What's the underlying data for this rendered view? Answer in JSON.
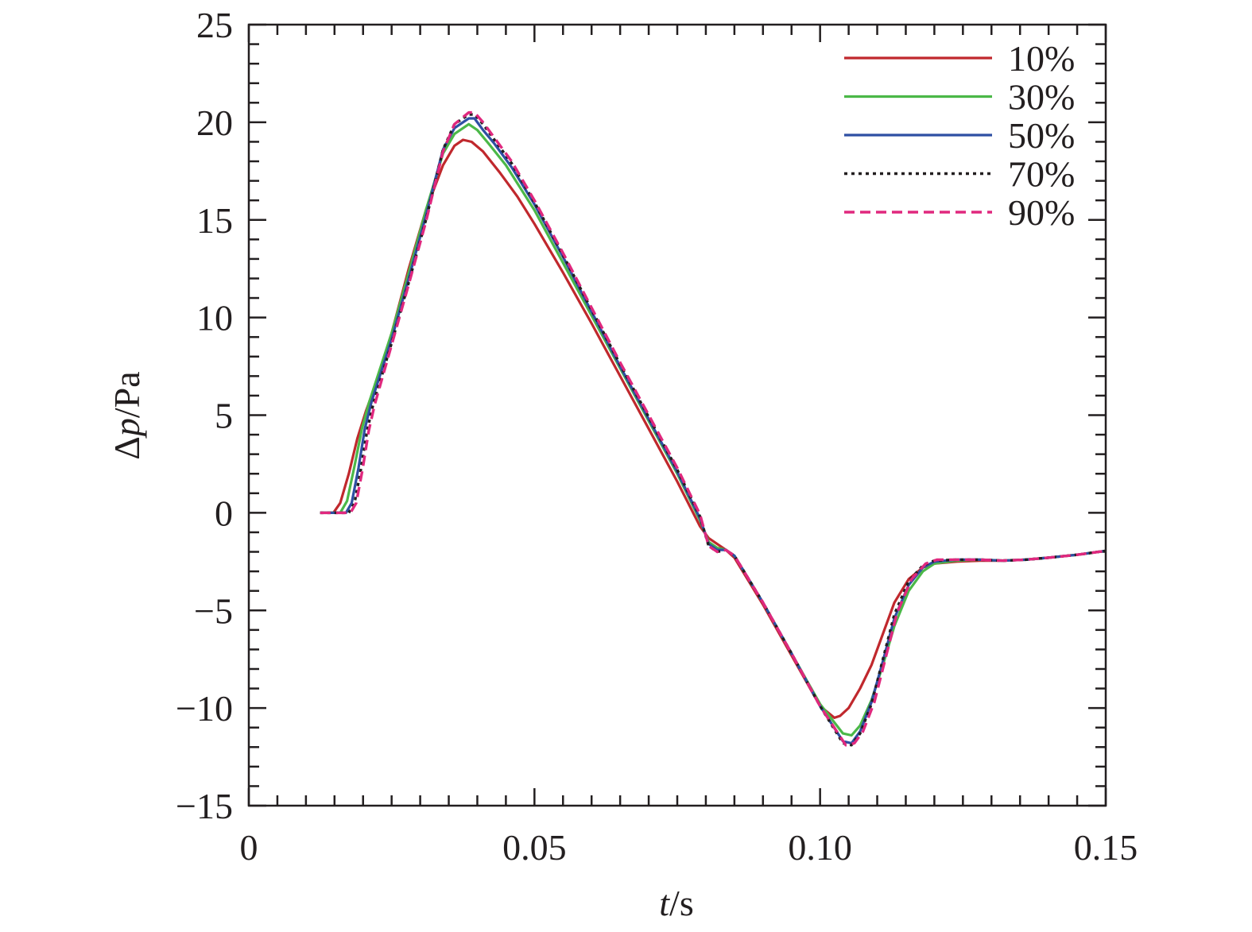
{
  "chart_data": {
    "type": "line",
    "title": "",
    "xlabel": {
      "var": "t",
      "unit": "/s"
    },
    "ylabel": {
      "var": "p",
      "prefix": "Δ",
      "unit": "/Pa"
    },
    "xlim": [
      0,
      0.15
    ],
    "ylim": [
      -15,
      25
    ],
    "xticks": [
      0,
      0.05,
      0.1,
      0.15
    ],
    "xtick_labels": [
      "0",
      "0.05",
      "0.10",
      "0.15"
    ],
    "yticks": [
      -15,
      -10,
      -5,
      0,
      5,
      10,
      15,
      20,
      25
    ],
    "ytick_labels": [
      "−15",
      "−10",
      "−5",
      "0",
      "5",
      "10",
      "15",
      "20",
      "25"
    ],
    "grid": false,
    "legend_position": "top-right",
    "series": [
      {
        "name": "10%",
        "color": "#c0282d",
        "style": "solid",
        "x": [
          0.0125,
          0.0148,
          0.016,
          0.0175,
          0.019,
          0.0205,
          0.022,
          0.025,
          0.028,
          0.031,
          0.034,
          0.036,
          0.0375,
          0.039,
          0.041,
          0.044,
          0.047,
          0.05,
          0.055,
          0.06,
          0.065,
          0.07,
          0.075,
          0.079,
          0.0805,
          0.082,
          0.0835,
          0.085,
          0.09,
          0.095,
          0.1,
          0.1025,
          0.1035,
          0.105,
          0.107,
          0.109,
          0.111,
          0.113,
          0.1155,
          0.118,
          0.12,
          0.124,
          0.128,
          0.132,
          0.136,
          0.14,
          0.145,
          0.15
        ],
        "y": [
          0,
          0,
          0.5,
          2.0,
          3.8,
          5.2,
          6.4,
          9.2,
          12.5,
          15.5,
          17.8,
          18.8,
          19.1,
          19.0,
          18.5,
          17.4,
          16.2,
          14.8,
          12.3,
          9.7,
          7.0,
          4.3,
          1.6,
          -0.7,
          -1.3,
          -1.6,
          -1.9,
          -2.3,
          -4.7,
          -7.3,
          -9.9,
          -10.5,
          -10.4,
          -10.0,
          -9.0,
          -7.8,
          -6.2,
          -4.6,
          -3.4,
          -2.8,
          -2.6,
          -2.5,
          -2.45,
          -2.45,
          -2.4,
          -2.3,
          -2.15,
          -1.95
        ]
      },
      {
        "name": "30%",
        "color": "#4bb848",
        "style": "solid",
        "x": [
          0.0125,
          0.016,
          0.0172,
          0.0185,
          0.0198,
          0.021,
          0.025,
          0.028,
          0.031,
          0.034,
          0.036,
          0.0385,
          0.04,
          0.042,
          0.045,
          0.05,
          0.055,
          0.06,
          0.065,
          0.07,
          0.075,
          0.079,
          0.0805,
          0.082,
          0.0835,
          0.085,
          0.09,
          0.095,
          0.1,
          0.104,
          0.1055,
          0.107,
          0.109,
          0.111,
          0.113,
          0.1155,
          0.118,
          0.12,
          0.124,
          0.128,
          0.132,
          0.136,
          0.14,
          0.145,
          0.15
        ],
        "y": [
          0,
          0,
          0.6,
          2.4,
          4.3,
          5.6,
          9.2,
          12.3,
          15.5,
          18.4,
          19.4,
          19.9,
          19.6,
          18.9,
          17.8,
          15.5,
          12.8,
          10.1,
          7.4,
          4.7,
          2.0,
          -0.4,
          -1.5,
          -1.8,
          -1.9,
          -2.2,
          -4.6,
          -7.2,
          -9.8,
          -11.3,
          -11.4,
          -10.9,
          -9.6,
          -7.8,
          -5.8,
          -4.0,
          -3.0,
          -2.6,
          -2.45,
          -2.4,
          -2.45,
          -2.4,
          -2.3,
          -2.15,
          -1.95
        ]
      },
      {
        "name": "50%",
        "color": "#2e4fa3",
        "style": "solid",
        "x": [
          0.0125,
          0.017,
          0.018,
          0.0192,
          0.0203,
          0.0215,
          0.025,
          0.028,
          0.031,
          0.034,
          0.036,
          0.0385,
          0.0395,
          0.041,
          0.043,
          0.046,
          0.05,
          0.055,
          0.06,
          0.065,
          0.07,
          0.075,
          0.079,
          0.0805,
          0.082,
          0.0835,
          0.085,
          0.09,
          0.095,
          0.1,
          0.104,
          0.1055,
          0.107,
          0.109,
          0.111,
          0.113,
          0.1155,
          0.118,
          0.12,
          0.124,
          0.128,
          0.132,
          0.136,
          0.14,
          0.145,
          0.15
        ],
        "y": [
          0,
          0,
          0.5,
          2.3,
          4.3,
          5.7,
          8.9,
          12.0,
          15.2,
          18.6,
          19.7,
          20.2,
          20.2,
          19.6,
          18.9,
          17.7,
          15.8,
          13.1,
          10.3,
          7.5,
          4.8,
          2.1,
          -0.3,
          -1.6,
          -1.9,
          -1.9,
          -2.2,
          -4.6,
          -7.2,
          -9.9,
          -11.7,
          -11.8,
          -11.2,
          -9.7,
          -7.6,
          -5.4,
          -3.7,
          -2.8,
          -2.5,
          -2.4,
          -2.4,
          -2.45,
          -2.4,
          -2.3,
          -2.15,
          -1.95
        ]
      },
      {
        "name": "70%",
        "color": "#231f20",
        "style": "dotted",
        "x": [
          0.0125,
          0.0175,
          0.0185,
          0.0196,
          0.0207,
          0.0218,
          0.025,
          0.028,
          0.031,
          0.034,
          0.036,
          0.0385,
          0.0395,
          0.041,
          0.043,
          0.046,
          0.05,
          0.055,
          0.06,
          0.065,
          0.07,
          0.075,
          0.079,
          0.0805,
          0.082,
          0.0835,
          0.085,
          0.09,
          0.095,
          0.1,
          0.104,
          0.1055,
          0.107,
          0.109,
          0.111,
          0.113,
          0.1155,
          0.118,
          0.12,
          0.124,
          0.128,
          0.132,
          0.136,
          0.14,
          0.145,
          0.15
        ],
        "y": [
          0,
          0,
          0.5,
          2.2,
          4.2,
          5.6,
          8.7,
          11.8,
          15.0,
          18.6,
          19.9,
          20.4,
          20.4,
          19.9,
          19.1,
          17.9,
          15.9,
          13.2,
          10.4,
          7.6,
          4.9,
          2.2,
          -0.2,
          -1.7,
          -2.0,
          -1.9,
          -2.2,
          -4.6,
          -7.2,
          -9.9,
          -11.8,
          -11.9,
          -11.3,
          -9.8,
          -7.5,
          -5.2,
          -3.5,
          -2.7,
          -2.45,
          -2.4,
          -2.4,
          -2.45,
          -2.4,
          -2.3,
          -2.15,
          -1.95
        ]
      },
      {
        "name": "90%",
        "color": "#e0287e",
        "style": "dashed",
        "x": [
          0.0125,
          0.0178,
          0.0188,
          0.0199,
          0.021,
          0.022,
          0.025,
          0.028,
          0.031,
          0.034,
          0.036,
          0.0385,
          0.0395,
          0.041,
          0.043,
          0.046,
          0.05,
          0.055,
          0.06,
          0.065,
          0.07,
          0.075,
          0.079,
          0.0805,
          0.082,
          0.0835,
          0.085,
          0.09,
          0.095,
          0.1,
          0.1045,
          0.106,
          0.1075,
          0.1095,
          0.1115,
          0.1135,
          0.116,
          0.1185,
          0.1205,
          0.124,
          0.128,
          0.132,
          0.136,
          0.14,
          0.145,
          0.15
        ],
        "y": [
          0,
          0,
          0.5,
          2.2,
          4.2,
          5.5,
          8.6,
          11.7,
          14.9,
          18.5,
          19.9,
          20.5,
          20.5,
          20.0,
          19.2,
          18.0,
          16.0,
          13.3,
          10.5,
          7.7,
          5.0,
          2.3,
          -0.1,
          -1.7,
          -2.0,
          -1.9,
          -2.2,
          -4.6,
          -7.2,
          -9.9,
          -11.9,
          -11.8,
          -11.2,
          -9.7,
          -7.4,
          -5.1,
          -3.4,
          -2.6,
          -2.4,
          -2.4,
          -2.4,
          -2.45,
          -2.4,
          -2.3,
          -2.15,
          -1.95
        ]
      }
    ]
  }
}
